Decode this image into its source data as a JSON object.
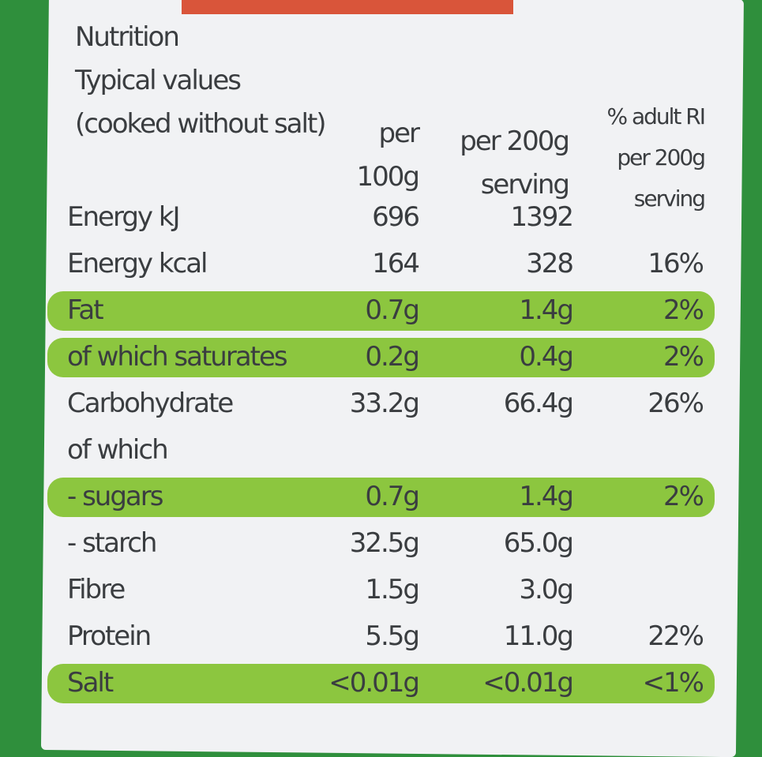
{
  "title": "Nutrition",
  "subtitle": "Typical values",
  "note": "(cooked without salt)",
  "columns": {
    "per_100g": "per 100g",
    "per_200g": "per 200g serving",
    "ri": "% adult RI per 200g serving"
  },
  "rows": [
    {
      "label": "Energy kJ",
      "per_100g": "696",
      "per_200g": "1392"
    },
    {
      "label": "Energy kcal",
      "per_100g": "164",
      "per_200g": "328",
      "ri": "16%"
    },
    {
      "label": "Fat",
      "per_100g": "0.7g",
      "per_200g": "1.4g",
      "ri": "2%",
      "highlight": true
    },
    {
      "label": "of which saturates",
      "per_100g": "0.2g",
      "per_200g": "0.4g",
      "ri": "2%",
      "highlight": true
    },
    {
      "label": "Carbohydrate",
      "per_100g": "33.2g",
      "per_200g": "66.4g",
      "ri": "26%"
    },
    {
      "label": "of which"
    },
    {
      "label": "- sugars",
      "per_100g": "0.7g",
      "per_200g": "1.4g",
      "ri": "2%",
      "highlight": true
    },
    {
      "label": "- starch",
      "per_100g": "32.5g",
      "per_200g": "65.0g"
    },
    {
      "label": "Fibre",
      "per_100g": "1.5g",
      "per_200g": "3.0g"
    },
    {
      "label": "Protein",
      "per_100g": "5.5g",
      "per_200g": "11.0g",
      "ri": "22%"
    },
    {
      "label": "Salt",
      "per_100g": "<0.01g",
      "per_200g": "<0.01g",
      "ri": "<1%",
      "highlight": true
    }
  ]
}
